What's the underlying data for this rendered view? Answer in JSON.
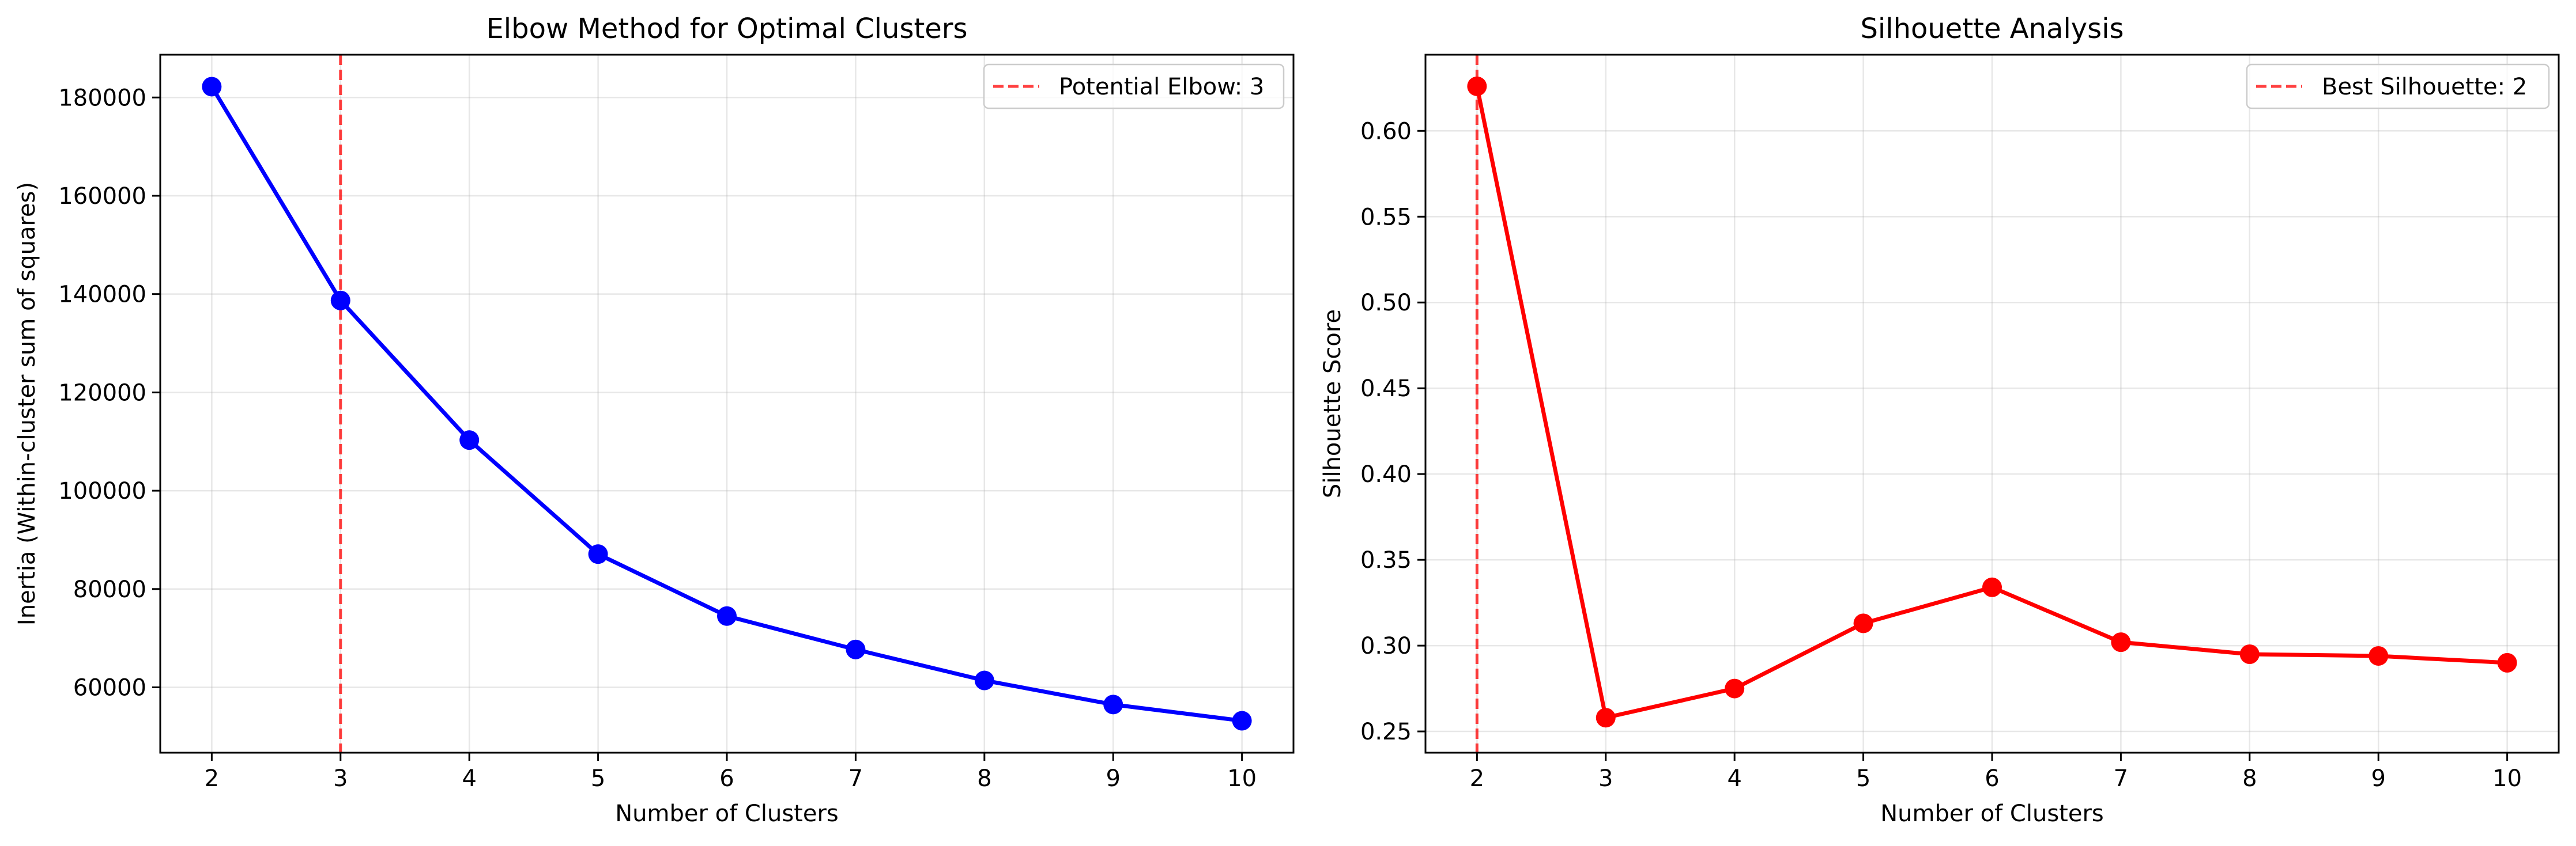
{
  "chart_data": [
    {
      "type": "line",
      "title": "Elbow Method for Optimal Clusters",
      "xlabel": "Number of Clusters",
      "ylabel": "Inertia (Within-cluster sum of squares)",
      "x": [
        2,
        3,
        4,
        5,
        6,
        7,
        8,
        9,
        10
      ],
      "series": [
        {
          "name": "",
          "color": "#0000ff",
          "values": [
            182200,
            138700,
            110300,
            87100,
            74500,
            67700,
            61400,
            56500,
            53200
          ]
        }
      ],
      "xlim": [
        1.6,
        10.4
      ],
      "ylim": [
        46700,
        188700
      ],
      "xticks": [
        2,
        3,
        4,
        5,
        6,
        7,
        8,
        9,
        10
      ],
      "yticks": [
        60000,
        80000,
        100000,
        120000,
        140000,
        160000,
        180000
      ],
      "ytick_labels": [
        "60000",
        "80000",
        "100000",
        "120000",
        "140000",
        "160000",
        "180000"
      ],
      "vline": {
        "x": 3,
        "color": "#ff0000",
        "label": "Potential Elbow: 3"
      },
      "legend": "top-right",
      "grid": true
    },
    {
      "type": "line",
      "title": "Silhouette Analysis",
      "xlabel": "Number of Clusters",
      "ylabel": "Silhouette Score",
      "x": [
        2,
        3,
        4,
        5,
        6,
        7,
        8,
        9,
        10
      ],
      "series": [
        {
          "name": "",
          "color": "#ff0000",
          "values": [
            0.626,
            0.258,
            0.275,
            0.313,
            0.334,
            0.302,
            0.295,
            0.294,
            0.29
          ]
        }
      ],
      "xlim": [
        1.6,
        10.4
      ],
      "ylim": [
        0.2376,
        0.6444
      ],
      "xticks": [
        2,
        3,
        4,
        5,
        6,
        7,
        8,
        9,
        10
      ],
      "yticks": [
        0.25,
        0.3,
        0.35,
        0.4,
        0.45,
        0.5,
        0.55,
        0.6
      ],
      "ytick_labels": [
        "0.25",
        "0.30",
        "0.35",
        "0.40",
        "0.45",
        "0.50",
        "0.55",
        "0.60"
      ],
      "vline": {
        "x": 2,
        "color": "#ff0000",
        "label": "Best Silhouette: 2"
      },
      "legend": "top-right",
      "grid": true
    }
  ]
}
